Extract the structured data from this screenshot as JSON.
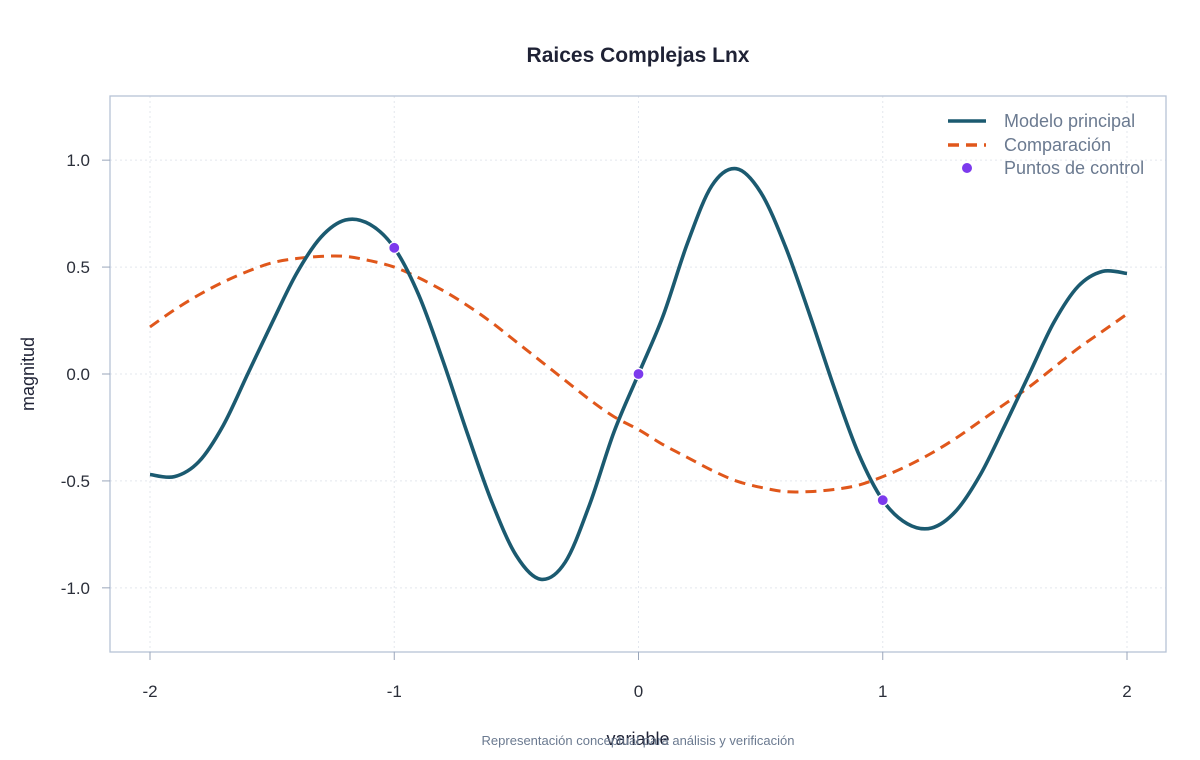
{
  "chart_data": {
    "type": "line",
    "title": "Raices Complejas Lnx",
    "xlabel": "variable",
    "ylabel": "magnitud",
    "caption": "Representación conceptual para análisis y verificación",
    "xlim": [
      -2,
      2
    ],
    "ylim": [
      -1.3,
      1.3
    ],
    "x_ticks": [
      -2,
      -1,
      0,
      1,
      2
    ],
    "x_tick_labels": [
      "-2",
      "-1",
      "0",
      "1",
      "2"
    ],
    "y_ticks": [
      -1.0,
      -0.5,
      0.0,
      0.5,
      1.0
    ],
    "y_tick_labels": [
      "-1.0",
      "-0.5",
      "0.0",
      "0.5",
      "1.0"
    ],
    "grid": true,
    "legend_position": "top-right",
    "series": [
      {
        "name": "Modelo principal",
        "style": "solid",
        "color": "#1b5a70",
        "x": [
          -2.0,
          -1.9,
          -1.8,
          -1.7,
          -1.6,
          -1.5,
          -1.4,
          -1.3,
          -1.2,
          -1.1,
          -1.0,
          -0.9,
          -0.8,
          -0.7,
          -0.6,
          -0.5,
          -0.4,
          -0.3,
          -0.2,
          -0.1,
          0.0,
          0.1,
          0.2,
          0.3,
          0.4,
          0.5,
          0.6,
          0.7,
          0.8,
          0.9,
          1.0,
          1.1,
          1.2,
          1.3,
          1.4,
          1.5,
          1.6,
          1.7,
          1.8,
          1.9,
          2.0
        ],
        "y": [
          -0.47,
          -0.48,
          -0.41,
          -0.24,
          0.0,
          0.24,
          0.47,
          0.64,
          0.72,
          0.7,
          0.59,
          0.37,
          0.06,
          -0.28,
          -0.6,
          -0.85,
          -0.96,
          -0.88,
          -0.61,
          -0.27,
          0.0,
          0.27,
          0.61,
          0.88,
          0.96,
          0.85,
          0.6,
          0.28,
          -0.06,
          -0.37,
          -0.59,
          -0.7,
          -0.72,
          -0.64,
          -0.47,
          -0.24,
          0.0,
          0.24,
          0.41,
          0.48,
          0.47
        ]
      },
      {
        "name": "Comparación",
        "style": "dashed",
        "color": "#e0571b",
        "x": [
          -2.0,
          -1.9,
          -1.8,
          -1.7,
          -1.6,
          -1.5,
          -1.4,
          -1.3,
          -1.2,
          -1.1,
          -1.0,
          -0.9,
          -0.8,
          -0.7,
          -0.6,
          -0.5,
          -0.4,
          -0.3,
          -0.2,
          -0.1,
          0.0,
          0.1,
          0.2,
          0.3,
          0.4,
          0.5,
          0.6,
          0.7,
          0.8,
          0.9,
          1.0,
          1.1,
          1.2,
          1.3,
          1.4,
          1.5,
          1.6,
          1.7,
          1.8,
          1.9,
          2.0
        ],
        "y": [
          0.22,
          0.3,
          0.37,
          0.43,
          0.48,
          0.52,
          0.54,
          0.55,
          0.55,
          0.53,
          0.5,
          0.45,
          0.39,
          0.32,
          0.24,
          0.15,
          0.06,
          -0.03,
          -0.12,
          -0.2,
          -0.26,
          -0.33,
          -0.39,
          -0.45,
          -0.5,
          -0.53,
          -0.55,
          -0.55,
          -0.54,
          -0.52,
          -0.48,
          -0.43,
          -0.37,
          -0.3,
          -0.22,
          -0.14,
          -0.06,
          0.03,
          0.12,
          0.2,
          0.28
        ]
      },
      {
        "name": "Puntos de control",
        "style": "points",
        "color": "#7c3aed",
        "x": [
          -1,
          0,
          1
        ],
        "y": [
          0.59,
          0.0,
          -0.59
        ]
      }
    ]
  },
  "colors": {
    "frame": "#b6c2d6",
    "tick": "#9aa6ba",
    "title": "#1f2235",
    "legend_text": "#6b7a90"
  }
}
